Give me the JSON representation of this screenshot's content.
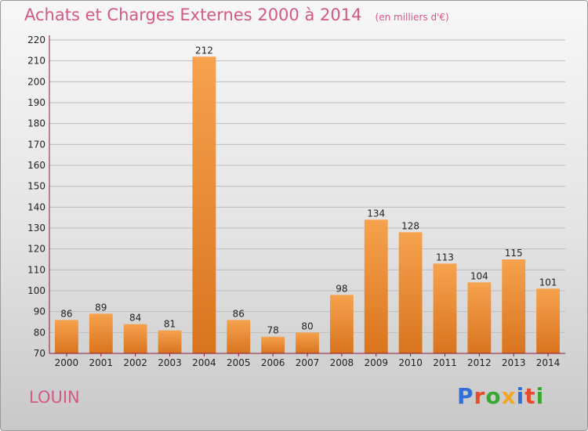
{
  "header": {
    "title": "Achats et Charges Externes 2000 à 2014",
    "unit": "(en milliers d'€)"
  },
  "commune": "LOUIN",
  "logo": {
    "text": "Proxiti",
    "colors": [
      "#2f6fd6",
      "#e84b2c",
      "#38a832",
      "#f2a623",
      "#2f6fd6",
      "#e84b2c",
      "#38a832"
    ]
  },
  "chart_data": {
    "type": "bar",
    "categories": [
      "2000",
      "2001",
      "2002",
      "2003",
      "2004",
      "2005",
      "2006",
      "2007",
      "2008",
      "2009",
      "2010",
      "2011",
      "2012",
      "2013",
      "2014"
    ],
    "values": [
      86,
      89,
      84,
      81,
      212,
      86,
      78,
      80,
      98,
      134,
      128,
      113,
      104,
      115,
      101
    ],
    "title": "Achats et Charges Externes 2000 à 2014",
    "ylabel": "",
    "xlabel": "",
    "ylim": [
      70,
      220
    ],
    "yticks": [
      70,
      80,
      90,
      100,
      110,
      120,
      130,
      140,
      150,
      160,
      170,
      180,
      190,
      200,
      210,
      220
    ],
    "grid": true,
    "colors": {
      "bar_light": "#f6a24e",
      "bar_dark": "#d9741e",
      "grid": "#bdbdbd",
      "axis": "#8b1a3a"
    }
  }
}
